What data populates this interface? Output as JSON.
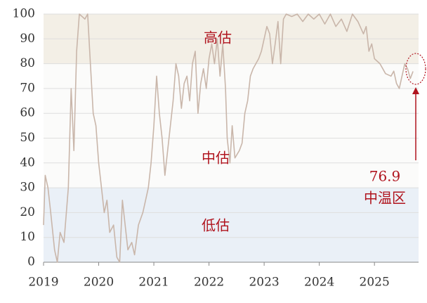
{
  "chart_data": {
    "type": "line",
    "x": [
      2019.0,
      2019.03,
      2019.08,
      2019.13,
      2019.2,
      2019.25,
      2019.3,
      2019.37,
      2019.45,
      2019.5,
      2019.55,
      2019.6,
      2019.65,
      2019.75,
      2019.8,
      2019.85,
      2019.9,
      2019.95,
      2020.0,
      2020.05,
      2020.1,
      2020.15,
      2020.2,
      2020.27,
      2020.33,
      2020.38,
      2020.43,
      2020.48,
      2020.53,
      2020.6,
      2020.65,
      2020.72,
      2020.8,
      2020.85,
      2020.9,
      2020.95,
      2021.0,
      2021.05,
      2021.1,
      2021.15,
      2021.2,
      2021.25,
      2021.3,
      2021.35,
      2021.4,
      2021.45,
      2021.5,
      2021.55,
      2021.6,
      2021.65,
      2021.7,
      2021.75,
      2021.8,
      2021.85,
      2021.9,
      2021.95,
      2022.0,
      2022.05,
      2022.1,
      2022.15,
      2022.2,
      2022.25,
      2022.3,
      2022.33,
      2022.38,
      2022.42,
      2022.47,
      2022.55,
      2022.6,
      2022.65,
      2022.7,
      2022.75,
      2022.8,
      2022.85,
      2022.9,
      2022.95,
      2023.0,
      2023.05,
      2023.1,
      2023.15,
      2023.2,
      2023.25,
      2023.3,
      2023.35,
      2023.4,
      2023.5,
      2023.6,
      2023.7,
      2023.8,
      2023.9,
      2024.0,
      2024.1,
      2024.2,
      2024.3,
      2024.4,
      2024.5,
      2024.6,
      2024.7,
      2024.8,
      2024.85,
      2024.9,
      2024.95,
      2025.0,
      2025.1,
      2025.15,
      2025.2,
      2025.3,
      2025.35,
      2025.4,
      2025.45,
      2025.5,
      2025.55,
      2025.6,
      2025.65,
      2025.7
    ],
    "series": [
      {
        "color": "#c9b6aa",
        "values": [
          15,
          35,
          30,
          20,
          5,
          0,
          12,
          8,
          30,
          70,
          45,
          85,
          100,
          98,
          100,
          80,
          60,
          55,
          40,
          30,
          20,
          25,
          12,
          15,
          2,
          0,
          25,
          15,
          5,
          8,
          3,
          15,
          20,
          25,
          30,
          40,
          55,
          75,
          60,
          50,
          35,
          45,
          55,
          65,
          80,
          75,
          62,
          72,
          75,
          65,
          80,
          85,
          60,
          72,
          78,
          70,
          82,
          88,
          80,
          90,
          75,
          88,
          70,
          50,
          40,
          55,
          42,
          45,
          48,
          60,
          65,
          75,
          78,
          80,
          82,
          85,
          90,
          95,
          92,
          80,
          88,
          97,
          80,
          98,
          100,
          99,
          100,
          97,
          100,
          98,
          100,
          96,
          100,
          95,
          98,
          93,
          100,
          97,
          92,
          95,
          85,
          88,
          82,
          80,
          78,
          76,
          75,
          77,
          72,
          70,
          75,
          80,
          78,
          74,
          76.9
        ]
      }
    ],
    "xlim": [
      2019,
      2025.8
    ],
    "xticks": [
      2019,
      2020,
      2021,
      2022,
      2023,
      2024,
      2025
    ],
    "ylim": [
      0,
      100
    ],
    "yticks": [
      0,
      10,
      20,
      30,
      40,
      50,
      60,
      70,
      80,
      90,
      100
    ],
    "bands": [
      {
        "from": 80,
        "to": 100,
        "color": "#f3efe6"
      },
      {
        "from": 30,
        "to": 80,
        "color": "#fbfbfa"
      },
      {
        "from": 0,
        "to": 30,
        "color": "#eaf0f7"
      }
    ],
    "annotations": [
      "高估",
      "中估",
      "低估",
      "76.9",
      "中温区"
    ]
  }
}
